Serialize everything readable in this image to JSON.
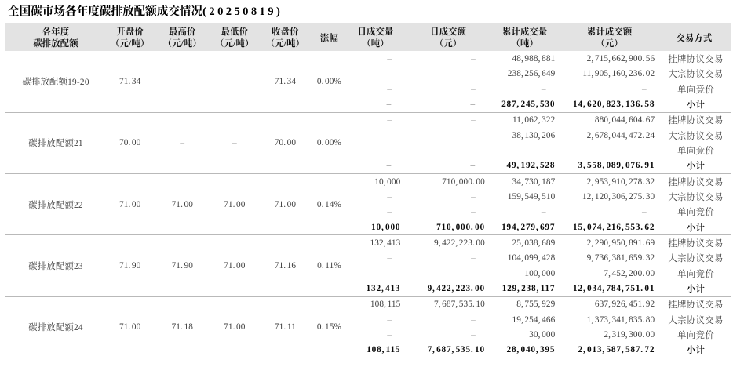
{
  "title": {
    "main": "全国碳市场各年度碳排放配额成交情况",
    "date": "(20250819)"
  },
  "columns": [
    {
      "line1": "各年度",
      "line2": "碳排放配额"
    },
    {
      "line1": "开盘价",
      "line2": "（元/吨）"
    },
    {
      "line1": "最高价",
      "line2": "（元/吨）"
    },
    {
      "line1": "最低价",
      "line2": "（元/吨）"
    },
    {
      "line1": "收盘价",
      "line2": "（元/吨）"
    },
    {
      "line1": "涨幅",
      "line2": ""
    },
    {
      "line1": "日成交量",
      "line2": "（吨）"
    },
    {
      "line1": "日成交额",
      "line2": "（元）"
    },
    {
      "line1": "累计成交量",
      "line2": "（吨）"
    },
    {
      "line1": "累计成交额",
      "line2": "（元）"
    },
    {
      "line1": "交易方式",
      "line2": ""
    }
  ],
  "groups": [
    {
      "name": "碳排放配额19-20",
      "open": "71.34",
      "high": "–",
      "low": "–",
      "close": "71.34",
      "change": "0.00%",
      "rows": [
        {
          "volume": "–",
          "amount": "–",
          "cum_volume": "48,988,881",
          "cum_amount": "2,715,662,900.56",
          "method": "挂牌协议交易"
        },
        {
          "volume": "–",
          "amount": "–",
          "cum_volume": "238,256,649",
          "cum_amount": "11,905,160,236.02",
          "method": "大宗协议交易"
        },
        {
          "volume": "–",
          "amount": "–",
          "cum_volume": "–",
          "cum_amount": "–",
          "method": "单向竞价"
        },
        {
          "volume": "–",
          "amount": "–",
          "cum_volume": "287,245,530",
          "cum_amount": "14,620,823,136.58",
          "method": "小计"
        }
      ]
    },
    {
      "name": "碳排放配额21",
      "open": "70.00",
      "high": "–",
      "low": "–",
      "close": "70.00",
      "change": "0.00%",
      "rows": [
        {
          "volume": "–",
          "amount": "–",
          "cum_volume": "11,062,322",
          "cum_amount": "880,044,604.67",
          "method": "挂牌协议交易"
        },
        {
          "volume": "–",
          "amount": "–",
          "cum_volume": "38,130,206",
          "cum_amount": "2,678,044,472.24",
          "method": "大宗协议交易"
        },
        {
          "volume": "–",
          "amount": "–",
          "cum_volume": "–",
          "cum_amount": "–",
          "method": "单向竞价"
        },
        {
          "volume": "–",
          "amount": "–",
          "cum_volume": "49,192,528",
          "cum_amount": "3,558,089,076.91",
          "method": "小计"
        }
      ]
    },
    {
      "name": "碳排放配额22",
      "open": "71.00",
      "high": "71.00",
      "low": "71.00",
      "close": "71.00",
      "change": "0.14%",
      "rows": [
        {
          "volume": "10,000",
          "amount": "710,000.00",
          "cum_volume": "34,730,187",
          "cum_amount": "2,953,910,278.32",
          "method": "挂牌协议交易"
        },
        {
          "volume": "–",
          "amount": "–",
          "cum_volume": "159,549,510",
          "cum_amount": "12,120,306,275.30",
          "method": "大宗协议交易"
        },
        {
          "volume": "–",
          "amount": "–",
          "cum_volume": "–",
          "cum_amount": "–",
          "method": "单向竞价"
        },
        {
          "volume": "10,000",
          "amount": "710,000.00",
          "cum_volume": "194,279,697",
          "cum_amount": "15,074,216,553.62",
          "method": "小计"
        }
      ]
    },
    {
      "name": "碳排放配额23",
      "open": "71.90",
      "high": "71.90",
      "low": "71.00",
      "close": "71.16",
      "change": "0.11%",
      "rows": [
        {
          "volume": "132,413",
          "amount": "9,422,223.00",
          "cum_volume": "25,038,689",
          "cum_amount": "2,290,950,891.69",
          "method": "挂牌协议交易"
        },
        {
          "volume": "–",
          "amount": "–",
          "cum_volume": "104,099,428",
          "cum_amount": "9,736,381,659.32",
          "method": "大宗协议交易"
        },
        {
          "volume": "–",
          "amount": "–",
          "cum_volume": "100,000",
          "cum_amount": "7,452,200.00",
          "method": "单向竞价"
        },
        {
          "volume": "132,413",
          "amount": "9,422,223.00",
          "cum_volume": "129,238,117",
          "cum_amount": "12,034,784,751.01",
          "method": "小计"
        }
      ]
    },
    {
      "name": "碳排放配额24",
      "open": "71.00",
      "high": "71.18",
      "low": "71.00",
      "close": "71.11",
      "change": "0.15%",
      "rows": [
        {
          "volume": "108,115",
          "amount": "7,687,535.10",
          "cum_volume": "8,755,929",
          "cum_amount": "637,926,451.92",
          "method": "挂牌协议交易"
        },
        {
          "volume": "–",
          "amount": "–",
          "cum_volume": "19,254,466",
          "cum_amount": "1,373,341,835.80",
          "method": "大宗协议交易"
        },
        {
          "volume": "–",
          "amount": "–",
          "cum_volume": "30,000",
          "cum_amount": "2,319,300.00",
          "method": "单向竞价"
        },
        {
          "volume": "108,115",
          "amount": "7,687,535.10",
          "cum_volume": "28,040,395",
          "cum_amount": "2,013,587,587.72",
          "method": "小计"
        }
      ]
    }
  ]
}
